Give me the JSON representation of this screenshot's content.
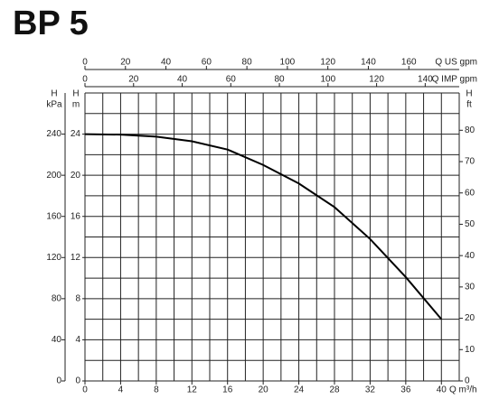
{
  "chart_data": {
    "type": "line",
    "title": "BP 5",
    "x": [
      0,
      4,
      8,
      12,
      16,
      20,
      24,
      28,
      32,
      36,
      40
    ],
    "series": [
      {
        "color": "#000000",
        "values": [
          24,
          23.95,
          23.75,
          23.3,
          22.5,
          21.0,
          19.2,
          16.9,
          13.8,
          10.1,
          6.0
        ]
      }
    ],
    "xlabel": "Q m³/h",
    "xlim": [
      0,
      42
    ],
    "xticks": [
      0,
      4,
      8,
      12,
      16,
      20,
      24,
      28,
      32,
      36,
      40
    ],
    "ylabel": [
      "H",
      "m"
    ],
    "ylim": [
      0,
      28
    ],
    "yticks": [
      0,
      4,
      8,
      12,
      16,
      20,
      24
    ],
    "grid_x": [
      0,
      2,
      4,
      6,
      8,
      10,
      12,
      14,
      16,
      18,
      20,
      22,
      24,
      26,
      28,
      30,
      32,
      34,
      36,
      38,
      40,
      42
    ],
    "grid_y": [
      0,
      2,
      4,
      6,
      8,
      10,
      12,
      14,
      16,
      18,
      20,
      22,
      24,
      26,
      28
    ],
    "kpa_axis": {
      "label": [
        "H",
        "kPa"
      ],
      "lim": [
        0,
        280
      ],
      "ticks": [
        0,
        40,
        80,
        120,
        160,
        200,
        240
      ]
    },
    "ft_axis": {
      "label": [
        "H",
        "ft"
      ],
      "lim": [
        0,
        91.9
      ],
      "ticks": [
        0,
        10,
        20,
        30,
        40,
        50,
        60,
        70,
        80
      ]
    },
    "us_gpm_axis": {
      "label": "Q US gpm",
      "lim": [
        0,
        184.9
      ],
      "ticks": [
        0,
        20,
        40,
        60,
        80,
        100,
        120,
        140,
        160
      ]
    },
    "imp_gpm_axis": {
      "label": "Q IMP gpm",
      "lim": [
        0,
        154
      ],
      "ticks": [
        0,
        20,
        40,
        60,
        80,
        100,
        120,
        140
      ]
    }
  }
}
